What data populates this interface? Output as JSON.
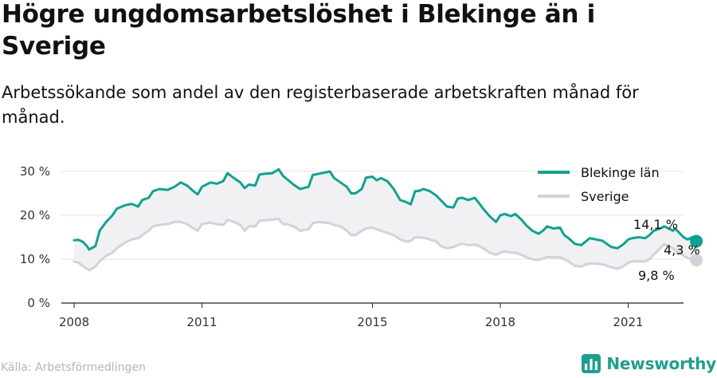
{
  "header": {
    "title": "Högre ungdomsarbetslöshet i Blekinge än i Sverige",
    "subtitle": "Arbetssökande som andel av den registerbaserade arbetskraften månad för månad."
  },
  "footer": {
    "source": "Källa: Arbetsförmedlingen",
    "brand": "Newsworthy"
  },
  "colors": {
    "blekinge": "#11a191",
    "sverige": "#d2d2d8",
    "gap_fill": "#f1f1f3"
  },
  "icons": {
    "brand_logo": "bar-chart-icon"
  },
  "chart_data": {
    "type": "line",
    "xlabel": "",
    "ylabel": "",
    "ylim": [
      0,
      32
    ],
    "xlim": [
      2007.7,
      2022.3
    ],
    "yticks": [
      {
        "value": 0,
        "label": "0 %"
      },
      {
        "value": 10,
        "label": "10 %"
      },
      {
        "value": 20,
        "label": "20 %"
      },
      {
        "value": 30,
        "label": "30 %"
      }
    ],
    "xticks": [
      {
        "value": 2008,
        "label": "2008"
      },
      {
        "value": 2011,
        "label": "2011"
      },
      {
        "value": 2015,
        "label": "2015"
      },
      {
        "value": 2018,
        "label": "2018"
      },
      {
        "value": 2021,
        "label": "2021"
      }
    ],
    "grid": true,
    "legend": "top-right",
    "end_labels": {
      "blekinge": "14,1 %",
      "sverige": "9,8 %",
      "difference": "4,3 %"
    },
    "series": [
      {
        "key": "blekinge",
        "name": "Blekinge län",
        "points": [
          [
            2008.0,
            14.3
          ],
          [
            2008.1,
            14.4
          ],
          [
            2008.2,
            14.0
          ],
          [
            2008.3,
            13.0
          ],
          [
            2008.35,
            12.2
          ],
          [
            2008.5,
            13.0
          ],
          [
            2008.6,
            16.5
          ],
          [
            2008.75,
            18.5
          ],
          [
            2008.9,
            20.0
          ],
          [
            2009.0,
            21.5
          ],
          [
            2009.2,
            22.3
          ],
          [
            2009.35,
            22.6
          ],
          [
            2009.5,
            22.0
          ],
          [
            2009.6,
            23.5
          ],
          [
            2009.75,
            24.0
          ],
          [
            2009.85,
            25.5
          ],
          [
            2010.0,
            26.0
          ],
          [
            2010.2,
            25.8
          ],
          [
            2010.35,
            26.5
          ],
          [
            2010.5,
            27.5
          ],
          [
            2010.65,
            26.8
          ],
          [
            2010.8,
            25.5
          ],
          [
            2010.9,
            24.8
          ],
          [
            2011.0,
            26.5
          ],
          [
            2011.1,
            27.0
          ],
          [
            2011.2,
            27.5
          ],
          [
            2011.35,
            27.2
          ],
          [
            2011.5,
            27.8
          ],
          [
            2011.6,
            29.6
          ],
          [
            2011.75,
            28.5
          ],
          [
            2011.9,
            27.5
          ],
          [
            2012.0,
            26.2
          ],
          [
            2012.1,
            27.0
          ],
          [
            2012.25,
            26.8
          ],
          [
            2012.35,
            29.3
          ],
          [
            2012.5,
            29.5
          ],
          [
            2012.65,
            29.6
          ],
          [
            2012.8,
            30.5
          ],
          [
            2012.9,
            29.0
          ],
          [
            2013.0,
            28.2
          ],
          [
            2013.15,
            27.0
          ],
          [
            2013.3,
            26.0
          ],
          [
            2013.5,
            26.5
          ],
          [
            2013.6,
            29.2
          ],
          [
            2013.75,
            29.5
          ],
          [
            2013.9,
            29.8
          ],
          [
            2014.0,
            30.0
          ],
          [
            2014.1,
            28.5
          ],
          [
            2014.25,
            27.5
          ],
          [
            2014.4,
            26.5
          ],
          [
            2014.5,
            25.0
          ],
          [
            2014.6,
            25.0
          ],
          [
            2014.75,
            26.0
          ],
          [
            2014.85,
            28.6
          ],
          [
            2015.0,
            28.8
          ],
          [
            2015.1,
            28.0
          ],
          [
            2015.2,
            28.5
          ],
          [
            2015.35,
            27.8
          ],
          [
            2015.5,
            26.0
          ],
          [
            2015.65,
            23.5
          ],
          [
            2015.8,
            23.0
          ],
          [
            2015.9,
            22.5
          ],
          [
            2016.0,
            25.5
          ],
          [
            2016.1,
            25.6
          ],
          [
            2016.2,
            26.0
          ],
          [
            2016.35,
            25.5
          ],
          [
            2016.5,
            24.5
          ],
          [
            2016.6,
            23.5
          ],
          [
            2016.75,
            22.0
          ],
          [
            2016.9,
            21.8
          ],
          [
            2017.0,
            23.8
          ],
          [
            2017.1,
            24.0
          ],
          [
            2017.25,
            23.5
          ],
          [
            2017.4,
            24.0
          ],
          [
            2017.5,
            22.8
          ],
          [
            2017.6,
            21.5
          ],
          [
            2017.75,
            19.8
          ],
          [
            2017.9,
            18.5
          ],
          [
            2018.0,
            20.0
          ],
          [
            2018.1,
            20.3
          ],
          [
            2018.25,
            19.8
          ],
          [
            2018.35,
            20.3
          ],
          [
            2018.5,
            19.0
          ],
          [
            2018.6,
            17.8
          ],
          [
            2018.75,
            16.5
          ],
          [
            2018.9,
            15.8
          ],
          [
            2019.0,
            16.5
          ],
          [
            2019.1,
            17.5
          ],
          [
            2019.25,
            17.0
          ],
          [
            2019.4,
            17.2
          ],
          [
            2019.5,
            15.5
          ],
          [
            2019.6,
            14.8
          ],
          [
            2019.75,
            13.5
          ],
          [
            2019.9,
            13.2
          ],
          [
            2020.0,
            14.0
          ],
          [
            2020.1,
            14.8
          ],
          [
            2020.25,
            14.5
          ],
          [
            2020.4,
            14.2
          ],
          [
            2020.5,
            13.5
          ],
          [
            2020.6,
            12.8
          ],
          [
            2020.75,
            12.5
          ],
          [
            2020.9,
            13.5
          ],
          [
            2021.0,
            14.5
          ],
          [
            2021.1,
            14.8
          ],
          [
            2021.25,
            15.0
          ],
          [
            2021.4,
            14.8
          ],
          [
            2021.5,
            15.5
          ],
          [
            2021.6,
            16.5
          ],
          [
            2021.75,
            17.0
          ],
          [
            2021.85,
            17.5
          ],
          [
            2021.95,
            17.0
          ],
          [
            2022.05,
            16.5
          ],
          [
            2022.1,
            17.0
          ],
          [
            2022.2,
            16.0
          ],
          [
            2022.3,
            15.0
          ],
          [
            2022.4,
            14.5
          ],
          [
            2022.5,
            15.0
          ],
          [
            2022.6,
            14.1
          ]
        ]
      },
      {
        "key": "sverige",
        "name": "Sverige",
        "points": [
          [
            2008.0,
            9.5
          ],
          [
            2008.1,
            9.2
          ],
          [
            2008.2,
            8.5
          ],
          [
            2008.35,
            7.5
          ],
          [
            2008.5,
            8.3
          ],
          [
            2008.6,
            9.5
          ],
          [
            2008.75,
            10.8
          ],
          [
            2008.9,
            11.5
          ],
          [
            2009.0,
            12.5
          ],
          [
            2009.2,
            13.8
          ],
          [
            2009.35,
            14.5
          ],
          [
            2009.5,
            14.8
          ],
          [
            2009.6,
            15.5
          ],
          [
            2009.75,
            16.5
          ],
          [
            2009.85,
            17.5
          ],
          [
            2010.0,
            17.8
          ],
          [
            2010.2,
            18.0
          ],
          [
            2010.35,
            18.5
          ],
          [
            2010.5,
            18.5
          ],
          [
            2010.65,
            18.0
          ],
          [
            2010.8,
            17.0
          ],
          [
            2010.9,
            16.5
          ],
          [
            2011.0,
            18.0
          ],
          [
            2011.1,
            18.2
          ],
          [
            2011.2,
            18.3
          ],
          [
            2011.35,
            18.0
          ],
          [
            2011.5,
            17.8
          ],
          [
            2011.6,
            19.0
          ],
          [
            2011.75,
            18.5
          ],
          [
            2011.9,
            17.8
          ],
          [
            2012.0,
            16.5
          ],
          [
            2012.1,
            17.5
          ],
          [
            2012.25,
            17.5
          ],
          [
            2012.35,
            18.8
          ],
          [
            2012.5,
            18.9
          ],
          [
            2012.65,
            19.0
          ],
          [
            2012.8,
            19.2
          ],
          [
            2012.9,
            18.0
          ],
          [
            2013.0,
            18.0
          ],
          [
            2013.15,
            17.5
          ],
          [
            2013.3,
            16.5
          ],
          [
            2013.5,
            16.8
          ],
          [
            2013.6,
            18.2
          ],
          [
            2013.75,
            18.5
          ],
          [
            2013.9,
            18.3
          ],
          [
            2014.0,
            18.2
          ],
          [
            2014.1,
            17.8
          ],
          [
            2014.25,
            17.5
          ],
          [
            2014.4,
            16.5
          ],
          [
            2014.5,
            15.5
          ],
          [
            2014.6,
            15.5
          ],
          [
            2014.75,
            16.5
          ],
          [
            2014.85,
            17.0
          ],
          [
            2015.0,
            17.2
          ],
          [
            2015.1,
            16.8
          ],
          [
            2015.2,
            16.5
          ],
          [
            2015.35,
            16.0
          ],
          [
            2015.5,
            15.5
          ],
          [
            2015.65,
            14.5
          ],
          [
            2015.8,
            14.0
          ],
          [
            2015.9,
            14.2
          ],
          [
            2016.0,
            15.0
          ],
          [
            2016.1,
            15.0
          ],
          [
            2016.25,
            14.8
          ],
          [
            2016.35,
            14.5
          ],
          [
            2016.5,
            14.0
          ],
          [
            2016.6,
            13.0
          ],
          [
            2016.75,
            12.5
          ],
          [
            2016.9,
            12.8
          ],
          [
            2017.0,
            13.2
          ],
          [
            2017.1,
            13.5
          ],
          [
            2017.25,
            13.2
          ],
          [
            2017.4,
            13.3
          ],
          [
            2017.5,
            13.0
          ],
          [
            2017.6,
            12.5
          ],
          [
            2017.75,
            11.5
          ],
          [
            2017.9,
            11.0
          ],
          [
            2018.0,
            11.5
          ],
          [
            2018.1,
            11.8
          ],
          [
            2018.25,
            11.5
          ],
          [
            2018.35,
            11.5
          ],
          [
            2018.5,
            11.0
          ],
          [
            2018.6,
            10.5
          ],
          [
            2018.75,
            10.0
          ],
          [
            2018.9,
            9.8
          ],
          [
            2019.0,
            10.2
          ],
          [
            2019.1,
            10.5
          ],
          [
            2019.25,
            10.4
          ],
          [
            2019.4,
            10.5
          ],
          [
            2019.5,
            10.0
          ],
          [
            2019.6,
            9.5
          ],
          [
            2019.75,
            8.5
          ],
          [
            2019.9,
            8.3
          ],
          [
            2020.0,
            8.8
          ],
          [
            2020.1,
            9.0
          ],
          [
            2020.25,
            9.0
          ],
          [
            2020.4,
            8.8
          ],
          [
            2020.5,
            8.5
          ],
          [
            2020.6,
            8.2
          ],
          [
            2020.75,
            7.8
          ],
          [
            2020.9,
            8.5
          ],
          [
            2021.0,
            9.2
          ],
          [
            2021.1,
            9.5
          ],
          [
            2021.25,
            9.5
          ],
          [
            2021.4,
            9.5
          ],
          [
            2021.5,
            10.0
          ],
          [
            2021.6,
            11.0
          ],
          [
            2021.75,
            12.5
          ],
          [
            2021.85,
            13.4
          ],
          [
            2021.95,
            13.0
          ],
          [
            2022.05,
            12.5
          ],
          [
            2022.1,
            12.0
          ],
          [
            2022.2,
            11.5
          ],
          [
            2022.3,
            10.8
          ],
          [
            2022.4,
            10.2
          ],
          [
            2022.5,
            10.0
          ],
          [
            2022.6,
            9.8
          ]
        ]
      }
    ]
  }
}
